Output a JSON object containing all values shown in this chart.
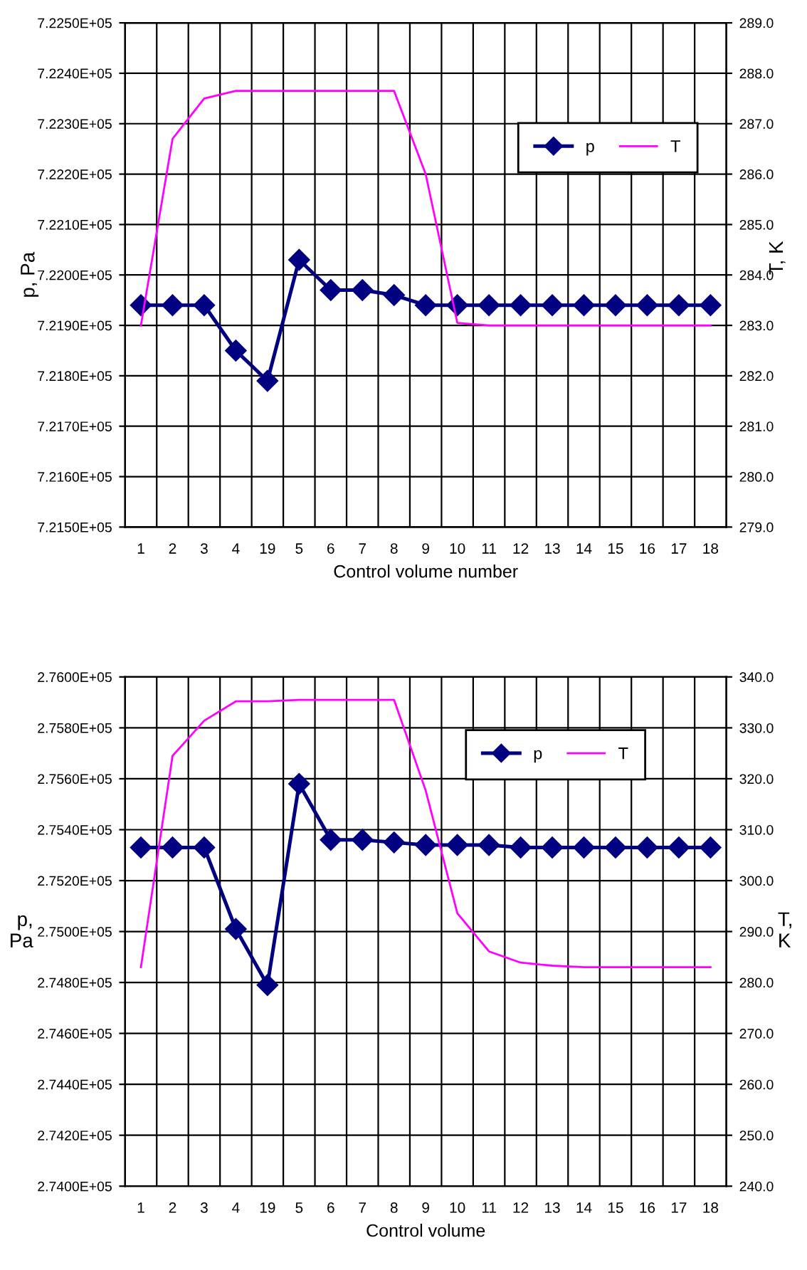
{
  "chart_data": [
    {
      "type": "line",
      "categories": [
        "1",
        "2",
        "3",
        "4",
        "19",
        "5",
        "6",
        "7",
        "8",
        "9",
        "10",
        "11",
        "12",
        "13",
        "14",
        "15",
        "16",
        "17",
        "18"
      ],
      "xlabel": "Control volume number",
      "ylabel": "p, Pa",
      "y2label": "T, K",
      "series": [
        {
          "name": "p",
          "color": "#000080",
          "marker": "diamond",
          "values": [
            721940,
            721940,
            721940,
            721850,
            721790,
            722030,
            721970,
            721970,
            721960,
            721940,
            721940,
            721940,
            721940,
            721940,
            721940,
            721940,
            721940,
            721940,
            721940
          ]
        },
        {
          "name": "T",
          "color": "#ff00ff",
          "marker": "none",
          "axis": "y2",
          "values": [
            283.0,
            286.7,
            287.5,
            287.65,
            287.65,
            287.65,
            287.65,
            287.65,
            287.65,
            286.0,
            283.05,
            283.0,
            283.0,
            283.0,
            283.0,
            283.0,
            283.0,
            283.0,
            283.0
          ]
        }
      ],
      "ylim": [
        721500,
        722500
      ],
      "yticks": [
        {
          "value": 721500,
          "label": "7.2150E+05"
        },
        {
          "value": 721600,
          "label": "7.2160E+05"
        },
        {
          "value": 721700,
          "label": "7.2170E+05"
        },
        {
          "value": 721800,
          "label": "7.2180E+05"
        },
        {
          "value": 721900,
          "label": "7.2190E+05"
        },
        {
          "value": 722000,
          "label": "7.2200E+05"
        },
        {
          "value": 722100,
          "label": "7.2210E+05"
        },
        {
          "value": 722200,
          "label": "7.2220E+05"
        },
        {
          "value": 722300,
          "label": "7.2230E+05"
        },
        {
          "value": 722400,
          "label": "7.2240E+05"
        },
        {
          "value": 722500,
          "label": "7.2250E+05"
        }
      ],
      "y2lim": [
        279,
        289
      ],
      "y2ticks": [
        {
          "value": 279,
          "label": "279.0"
        },
        {
          "value": 280,
          "label": "280.0"
        },
        {
          "value": 281,
          "label": "281.0"
        },
        {
          "value": 282,
          "label": "282.0"
        },
        {
          "value": 283,
          "label": "283.0"
        },
        {
          "value": 284,
          "label": "284.0"
        },
        {
          "value": 285,
          "label": "285.0"
        },
        {
          "value": 286,
          "label": "286.0"
        },
        {
          "value": 287,
          "label": "287.0"
        },
        {
          "value": 288,
          "label": "288.0"
        },
        {
          "value": 289,
          "label": "289.0"
        }
      ],
      "grid": true,
      "legend": "top right"
    },
    {
      "type": "line",
      "categories": [
        "1",
        "2",
        "3",
        "4",
        "19",
        "5",
        "6",
        "7",
        "8",
        "9",
        "10",
        "11",
        "12",
        "13",
        "14",
        "15",
        "16",
        "17",
        "18"
      ],
      "xlabel": "Control volume",
      "ylabel": "p,\nPa",
      "y2label": "T,\nK",
      "series": [
        {
          "name": "p",
          "color": "#000080",
          "marker": "diamond",
          "values": [
            275330,
            275330,
            275330,
            275010,
            274790,
            275580,
            275360,
            275360,
            275350,
            275340,
            275340,
            275340,
            275330,
            275330,
            275330,
            275330,
            275330,
            275330,
            275330
          ]
        },
        {
          "name": "T",
          "color": "#ff00ff",
          "marker": "none",
          "axis": "y2",
          "values": [
            283.0,
            324.5,
            331.4,
            335.2,
            335.2,
            335.5,
            335.5,
            335.5,
            335.5,
            317.7,
            293.6,
            286.1,
            283.9,
            283.3,
            283.0,
            283.0,
            283.0,
            283.0,
            283.0
          ]
        }
      ],
      "ylim": [
        274000,
        276000
      ],
      "yticks": [
        {
          "value": 274000,
          "label": "2.7400E+05"
        },
        {
          "value": 274200,
          "label": "2.7420E+05"
        },
        {
          "value": 274400,
          "label": "2.7440E+05"
        },
        {
          "value": 274600,
          "label": "2.7460E+05"
        },
        {
          "value": 274800,
          "label": "2.7480E+05"
        },
        {
          "value": 275000,
          "label": "2.7500E+05"
        },
        {
          "value": 275200,
          "label": "2.7520E+05"
        },
        {
          "value": 275400,
          "label": "2.7540E+05"
        },
        {
          "value": 275600,
          "label": "2.7560E+05"
        },
        {
          "value": 275800,
          "label": "2.7580E+05"
        },
        {
          "value": 276000,
          "label": "2.7600E+05"
        }
      ],
      "y2lim": [
        240,
        340
      ],
      "y2ticks": [
        {
          "value": 240,
          "label": "240.0"
        },
        {
          "value": 250,
          "label": "250.0"
        },
        {
          "value": 260,
          "label": "260.0"
        },
        {
          "value": 270,
          "label": "270.0"
        },
        {
          "value": 280,
          "label": "280.0"
        },
        {
          "value": 290,
          "label": "290.0"
        },
        {
          "value": 300,
          "label": "300.0"
        },
        {
          "value": 310,
          "label": "310.0"
        },
        {
          "value": 320,
          "label": "320.0"
        },
        {
          "value": 330,
          "label": "330.0"
        },
        {
          "value": 340,
          "label": "340.0"
        }
      ],
      "grid": true,
      "legend": "top right"
    }
  ]
}
